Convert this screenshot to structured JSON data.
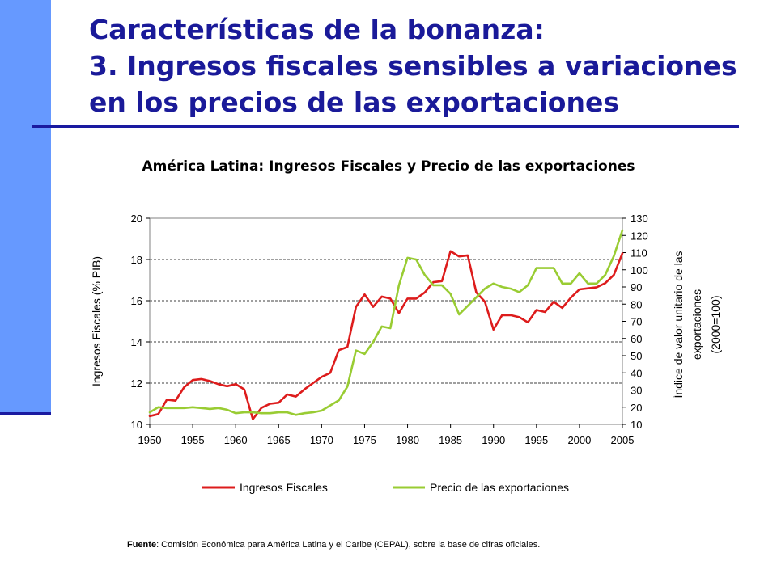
{
  "slide": {
    "title_line1": "Características de la bonanza:",
    "title_line2": "3. Ingresos fiscales sensibles a  variaciones",
    "title_line3": "en los precios de las exportaciones"
  },
  "source": {
    "label": "Fuente",
    "text": ": Comisión Económica para América Latina y el Caribe (CEPAL), sobre la base de cifras oficiales."
  },
  "colors": {
    "accent_bar": "#6699ff",
    "title": "#1a1a99",
    "series_ingresos": "#dd1c1c",
    "series_precio": "#99cc33"
  },
  "chart_data": {
    "type": "line",
    "title": "América Latina: Ingresos Fiscales y Precio de las exportaciones",
    "ylabel": "Ingresos Fiscales (% PIB)",
    "y2label": [
      "Índice de valor unitario de las",
      "exportaciones",
      "(2000=100)"
    ],
    "xlim": [
      1950,
      2005
    ],
    "ylim": [
      10,
      20
    ],
    "y2lim": [
      10,
      130
    ],
    "xticks": [
      1950,
      1955,
      1960,
      1965,
      1970,
      1975,
      1980,
      1985,
      1990,
      1995,
      2000,
      2005
    ],
    "yticks": [
      10,
      12,
      14,
      16,
      18,
      20
    ],
    "y2ticks": [
      10,
      20,
      30,
      40,
      50,
      60,
      70,
      80,
      90,
      100,
      110,
      120,
      130
    ],
    "grid": "horizontal dashed",
    "legend": "bottom",
    "series": [
      {
        "name": "Ingresos Fiscales",
        "axis": "left",
        "x": [
          1950,
          1951,
          1952,
          1953,
          1954,
          1955,
          1956,
          1957,
          1958,
          1959,
          1960,
          1961,
          1962,
          1963,
          1964,
          1965,
          1966,
          1967,
          1968,
          1969,
          1970,
          1971,
          1972,
          1973,
          1974,
          1975,
          1976,
          1977,
          1978,
          1979,
          1980,
          1981,
          1982,
          1983,
          1984,
          1985,
          1986,
          1987,
          1988,
          1989,
          1990,
          1991,
          1992,
          1993,
          1994,
          1995,
          1996,
          1997,
          1998,
          1999,
          2000,
          2001,
          2002,
          2003,
          2004,
          2005
        ],
        "values": [
          10.4,
          10.5,
          11.2,
          11.15,
          11.8,
          12.15,
          12.2,
          12.1,
          11.95,
          11.85,
          11.95,
          11.7,
          10.25,
          10.8,
          11.0,
          11.05,
          11.45,
          11.35,
          11.7,
          12.0,
          12.3,
          12.5,
          13.6,
          13.75,
          15.7,
          16.3,
          15.7,
          16.2,
          16.1,
          15.4,
          16.1,
          16.1,
          16.4,
          16.9,
          16.95,
          18.4,
          18.15,
          18.2,
          16.4,
          15.95,
          14.6,
          15.3,
          15.3,
          15.2,
          14.95,
          15.55,
          15.45,
          15.95,
          15.65,
          16.15,
          16.55,
          16.6,
          16.65,
          16.85,
          17.25,
          18.3
        ]
      },
      {
        "name": "Precio de las exportaciones",
        "axis": "right",
        "x": [
          1950,
          1951,
          1952,
          1953,
          1954,
          1955,
          1956,
          1957,
          1958,
          1959,
          1960,
          1961,
          1962,
          1963,
          1964,
          1965,
          1966,
          1967,
          1968,
          1969,
          1970,
          1971,
          1972,
          1973,
          1974,
          1975,
          1976,
          1977,
          1978,
          1979,
          1980,
          1981,
          1982,
          1983,
          1984,
          1985,
          1986,
          1987,
          1988,
          1989,
          1990,
          1991,
          1992,
          1993,
          1994,
          1995,
          1996,
          1997,
          1998,
          1999,
          2000,
          2001,
          2002,
          2003,
          2004,
          2005
        ],
        "values": [
          17,
          20,
          19.5,
          19.5,
          19.5,
          20,
          19.5,
          19,
          19.5,
          18.5,
          16.5,
          17,
          17,
          16.5,
          16.5,
          17,
          17,
          15.5,
          16.5,
          17,
          18,
          21,
          24,
          32,
          53,
          51,
          58,
          67,
          66,
          91,
          107,
          106,
          97,
          91,
          91,
          86,
          74,
          79,
          84,
          89,
          92,
          90,
          89,
          87,
          91,
          101,
          101,
          101,
          92,
          92,
          98,
          92,
          92,
          97,
          108,
          123
        ]
      }
    ]
  }
}
